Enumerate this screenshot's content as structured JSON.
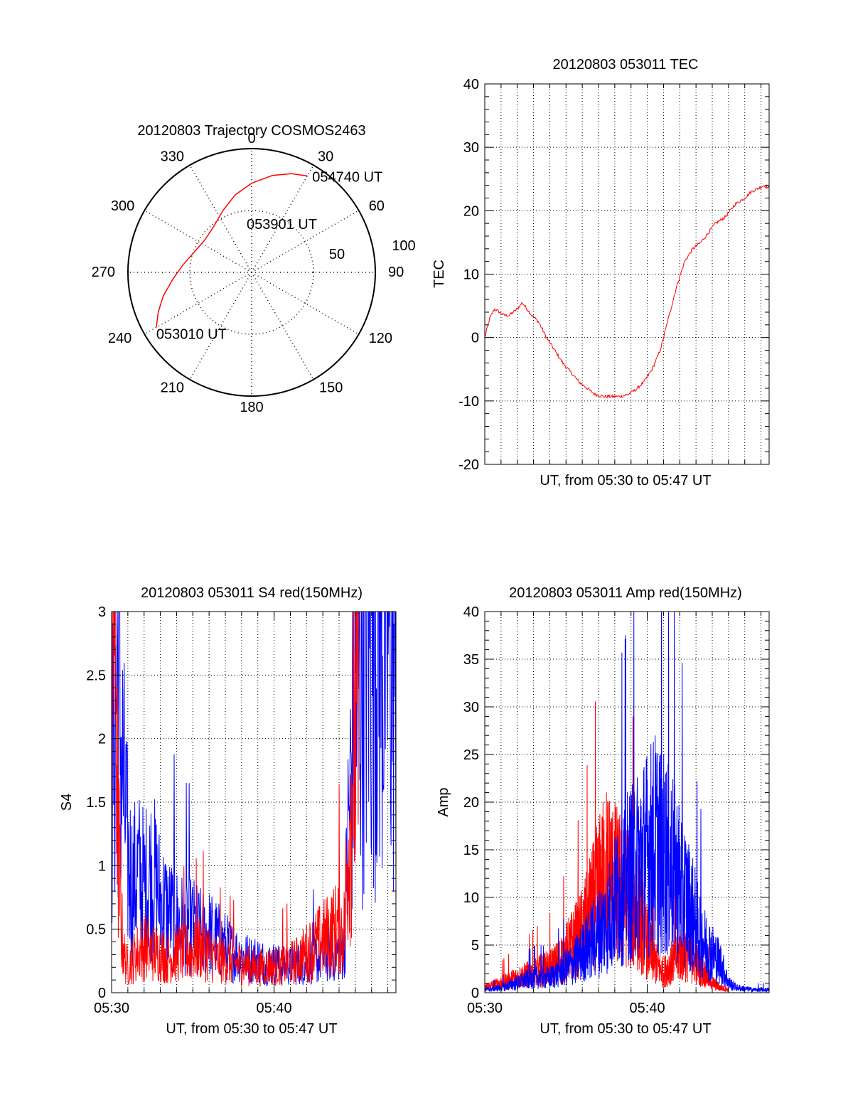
{
  "colors": {
    "red": "#ff0000",
    "blue": "#0000ff",
    "axis": "#000000",
    "grid": "#000000"
  },
  "chart_data": [
    {
      "id": "polar",
      "type": "polar",
      "title": "20120803 Trajectory COSMOS2463",
      "angle_labels": [
        "0",
        "30",
        "60",
        "90",
        "120",
        "150",
        "180",
        "210",
        "240",
        "270",
        "300",
        "330"
      ],
      "radius_labels": [
        "50",
        "100"
      ],
      "radial_max": 100,
      "inner_ring": 50,
      "trajectory": {
        "color": "red",
        "points_az_zd": [
          [
            240,
            89
          ],
          [
            247,
            82
          ],
          [
            255,
            74
          ],
          [
            265,
            64
          ],
          [
            276,
            56
          ],
          [
            290,
            49
          ],
          [
            305,
            46
          ],
          [
            320,
            48
          ],
          [
            335,
            55
          ],
          [
            348,
            64
          ],
          [
            0,
            72
          ],
          [
            12,
            80
          ],
          [
            22,
            86
          ],
          [
            30,
            90
          ]
        ]
      },
      "annotations": [
        {
          "text": "053010 UT",
          "az": 240,
          "zd": 89
        },
        {
          "text": "053901 UT",
          "az": 353,
          "zd": 33
        },
        {
          "text": "054740 UT",
          "az": 33,
          "zd": 90
        }
      ]
    },
    {
      "id": "tec",
      "type": "line",
      "title": "20120803 053011 TEC",
      "xlabel": "UT, from 05:30 to 05:47 UT",
      "ylabel": "TEC",
      "xlim": [
        0,
        17.5
      ],
      "ylim": [
        -20,
        40
      ],
      "yticks": [
        "-20",
        "-10",
        "0",
        "10",
        "20",
        "30",
        "40"
      ],
      "series": [
        {
          "color": "red",
          "x": [
            0,
            0.3,
            0.6,
            0.9,
            1.2,
            1.5,
            2.0,
            2.3,
            2.6,
            2.9,
            3.3,
            3.8,
            4.3,
            4.8,
            5.3,
            5.8,
            6.3,
            6.8,
            7.3,
            7.8,
            8.3,
            8.8,
            9.3,
            9.8,
            10.3,
            10.8,
            11.3,
            11.8,
            12.3,
            12.8,
            13.3,
            13.6,
            13.9,
            14.2,
            14.5,
            14.8,
            15.1,
            15.4,
            15.7,
            16.0,
            16.4,
            16.8,
            17.2,
            17.5
          ],
          "y": [
            0,
            3,
            4.5,
            4,
            3.5,
            3.5,
            4.5,
            5.5,
            4.5,
            3.5,
            2.5,
            0,
            -2,
            -4,
            -5.5,
            -7,
            -8,
            -9,
            -9.3,
            -9.3,
            -9.3,
            -9,
            -8.2,
            -7,
            -5,
            -2,
            3,
            8,
            12,
            14,
            15,
            16,
            17,
            18,
            18.5,
            19,
            20,
            21,
            21.5,
            22,
            23,
            23.5,
            24,
            23.5
          ]
        }
      ]
    },
    {
      "id": "s4",
      "type": "line",
      "title": "20120803 053011 S4 red(150MHz)",
      "xlabel": "UT, from 05:30 to 05:47 UT",
      "ylabel": "S4",
      "xlim": [
        0,
        17.5
      ],
      "ylim": [
        0,
        3
      ],
      "xticks": [
        {
          "v": 0,
          "label": "05:30"
        },
        {
          "v": 10,
          "label": "05:40"
        }
      ],
      "yticks": [
        "0",
        "0.5",
        "1",
        "1.5",
        "2",
        "2.5",
        "3"
      ],
      "series": [
        {
          "color": "blue",
          "x": [
            0,
            0.2,
            0.4,
            0.6,
            0.8,
            1.0,
            1.3,
            1.6,
            2.0,
            2.5,
            3.0,
            3.5,
            4.0,
            4.5,
            5.0,
            5.5,
            6.0,
            6.5,
            7.0,
            7.5,
            8.0,
            8.5,
            9.0,
            9.5,
            10.0,
            10.5,
            11.0,
            11.5,
            12.0,
            12.5,
            13.0,
            13.5,
            14.0,
            14.3,
            14.6,
            14.9,
            15.2,
            15.5,
            15.8,
            16.1,
            16.4,
            16.7,
            17.0,
            17.3,
            17.5
          ],
          "y": [
            1.5,
            2.0,
            2.5,
            1.8,
            1.4,
            1.0,
            0.8,
            0.9,
            0.8,
            0.9,
            0.7,
            0.6,
            0.55,
            0.5,
            0.5,
            0.45,
            0.45,
            0.4,
            0.35,
            0.3,
            0.28,
            0.25,
            0.25,
            0.22,
            0.22,
            0.2,
            0.2,
            0.22,
            0.22,
            0.25,
            0.25,
            0.3,
            0.3,
            0.32,
            1.3,
            2.0,
            2.5,
            2.6,
            2.8,
            2.7,
            2.9,
            2.6,
            2.8,
            2.5,
            2.2
          ]
        },
        {
          "color": "red",
          "x": [
            0,
            0.2,
            0.4,
            0.6,
            0.8,
            1.0,
            1.3,
            1.6,
            2.0,
            2.5,
            3.0,
            3.5,
            4.0,
            4.5,
            5.0,
            5.5,
            6.0,
            6.5,
            7.0,
            7.5,
            8.0,
            8.5,
            9.0,
            9.5,
            10.0,
            10.5,
            11.0,
            11.5,
            12.0,
            12.5,
            13.0,
            13.5,
            14.0,
            14.3,
            14.6,
            14.9,
            15.2
          ],
          "y": [
            2.5,
            3.0,
            1.2,
            0.5,
            0.25,
            0.2,
            0.25,
            0.3,
            0.35,
            0.3,
            0.3,
            0.25,
            0.3,
            0.3,
            0.3,
            0.35,
            0.3,
            0.25,
            0.25,
            0.22,
            0.22,
            0.2,
            0.18,
            0.2,
            0.2,
            0.2,
            0.22,
            0.25,
            0.3,
            0.35,
            0.4,
            0.45,
            0.5,
            0.45,
            1.2,
            1.8,
            2.0
          ]
        }
      ]
    },
    {
      "id": "amp",
      "type": "line",
      "title": "20120803 053011 Amp red(150MHz)",
      "xlabel": "UT, from 05:30 to 05:47 UT",
      "ylabel": "Amp",
      "xlim": [
        0,
        17.5
      ],
      "ylim": [
        0,
        40
      ],
      "xticks": [
        {
          "v": 0,
          "label": "05:30"
        },
        {
          "v": 10,
          "label": "05:40"
        }
      ],
      "yticks": [
        "0",
        "5",
        "10",
        "15",
        "20",
        "25",
        "30",
        "35",
        "40"
      ],
      "series": [
        {
          "color": "red",
          "x": [
            0,
            1,
            2,
            3,
            4,
            4.5,
            5,
            5.5,
            6,
            6.5,
            7,
            7.5,
            8,
            8.5,
            9,
            9.5,
            10,
            10.5,
            11,
            11.5,
            12,
            12.5,
            13,
            13.5,
            14,
            14.5,
            15
          ],
          "y": [
            0.5,
            1,
            1.5,
            2,
            2.5,
            3,
            4,
            5,
            6,
            8,
            10,
            12,
            11,
            10,
            9,
            8,
            5,
            3,
            2,
            3,
            4,
            4,
            3,
            2,
            1,
            0.5,
            0.3
          ]
        },
        {
          "color": "blue",
          "x": [
            0,
            1,
            2,
            3,
            4,
            4.5,
            5,
            5.5,
            6,
            6.5,
            7,
            7.5,
            8,
            8.5,
            9,
            9.5,
            10,
            10.5,
            11,
            11.5,
            12,
            12.5,
            13,
            13.5,
            14,
            14.5,
            15,
            15.5,
            16,
            16.5,
            17,
            17.5
          ],
          "y": [
            0.3,
            0.5,
            1,
            1.5,
            1.5,
            2,
            2.5,
            3,
            4,
            5,
            6,
            7,
            9,
            11,
            12,
            13,
            14,
            15,
            14,
            13,
            11,
            9,
            7,
            5,
            4,
            3,
            1,
            0.5,
            0.4,
            0.3,
            0.3,
            0.3
          ]
        }
      ]
    }
  ]
}
